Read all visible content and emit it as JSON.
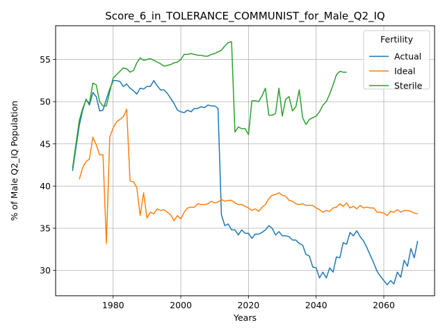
{
  "chart_data": {
    "type": "line",
    "title": "Score_6_in_TOLERANCE_COMMUNIST_for_Male_Q2_IQ",
    "xlabel": "Years",
    "ylabel": "% of Male Q2_IQ Population",
    "xlim": [
      1963,
      2075
    ],
    "ylim": [
      27,
      59
    ],
    "xticks": [
      1980,
      2000,
      2020,
      2040,
      2060
    ],
    "yticks": [
      30,
      35,
      40,
      45,
      50,
      55
    ],
    "grid": true,
    "legend": {
      "title": "Fertility",
      "placement": "top-right"
    },
    "series": [
      {
        "name": "Actual",
        "color": "#1f77b4",
        "x": [
          1968,
          1970,
          1971,
          1972,
          1973,
          1974,
          1975,
          1976,
          1977,
          1978,
          1979,
          1980,
          1981,
          1982,
          1983,
          1984,
          1985,
          1986,
          1987,
          1988,
          1989,
          1990,
          1991,
          1992,
          1993,
          1994,
          1995,
          1996,
          1997,
          1998,
          1999,
          2000,
          2001,
          2002,
          2003,
          2004,
          2005,
          2006,
          2007,
          2008,
          2009,
          2010,
          2011,
          2012,
          2013,
          2014,
          2015,
          2016,
          2017,
          2018,
          2019,
          2020,
          2021,
          2022,
          2023,
          2024,
          2025,
          2026,
          2027,
          2028,
          2029,
          2030,
          2031,
          2032,
          2033,
          2034,
          2035,
          2036,
          2037,
          2038,
          2039,
          2040,
          2041,
          2042,
          2043,
          2044,
          2045,
          2046,
          2047,
          2048,
          2049,
          2050,
          2051,
          2052,
          2053,
          2054,
          2055,
          2056,
          2057,
          2058,
          2059,
          2060,
          2061,
          2062,
          2063,
          2064,
          2065,
          2066,
          2067,
          2068,
          2069,
          2070
        ],
        "y": [
          41.8,
          47.2,
          49.0,
          50.3,
          49.6,
          51.1,
          50.6,
          48.9,
          49.0,
          50.3,
          51.5,
          52.5,
          52.5,
          52.4,
          51.8,
          52.1,
          51.6,
          51.3,
          50.9,
          51.6,
          51.5,
          51.8,
          51.8,
          52.5,
          51.9,
          51.4,
          51.4,
          51.0,
          50.4,
          49.8,
          49.0,
          48.8,
          48.7,
          49.0,
          48.8,
          49.2,
          49.2,
          49.4,
          49.3,
          49.6,
          49.5,
          49.5,
          49.2,
          36.6,
          35.3,
          35.5,
          34.8,
          34.8,
          34.2,
          34.8,
          34.4,
          34.4,
          33.8,
          34.3,
          34.3,
          34.5,
          34.8,
          35.3,
          35.0,
          34.2,
          34.6,
          34.1,
          34.1,
          34.0,
          33.6,
          33.6,
          33.2,
          33.0,
          31.9,
          31.7,
          30.4,
          30.3,
          29.1,
          29.8,
          29.1,
          30.3,
          29.8,
          31.6,
          31.5,
          33.3,
          33.1,
          34.5,
          34.1,
          34.7,
          34.0,
          33.5,
          32.7,
          31.8,
          30.9,
          29.9,
          29.3,
          28.8,
          28.3,
          28.8,
          28.4,
          29.8,
          29.2,
          31.2,
          30.5,
          32.6,
          31.5,
          33.5
        ]
      },
      {
        "name": "Ideal",
        "color": "#ff7f0e",
        "x": [
          1970,
          1971,
          1972,
          1973,
          1974,
          1975,
          1976,
          1977,
          1978,
          1979,
          1980,
          1981,
          1982,
          1983,
          1984,
          1985,
          1986,
          1987,
          1988,
          1989,
          1990,
          1991,
          1992,
          1993,
          1994,
          1995,
          1996,
          1997,
          1998,
          1999,
          2000,
          2001,
          2002,
          2003,
          2004,
          2005,
          2006,
          2007,
          2008,
          2009,
          2010,
          2011,
          2012,
          2013,
          2014,
          2015,
          2016,
          2017,
          2018,
          2019,
          2020,
          2021,
          2022,
          2023,
          2024,
          2025,
          2026,
          2027,
          2028,
          2029,
          2030,
          2031,
          2032,
          2033,
          2034,
          2035,
          2036,
          2037,
          2038,
          2039,
          2040,
          2041,
          2042,
          2043,
          2044,
          2045,
          2046,
          2047,
          2048,
          2049,
          2050,
          2051,
          2052,
          2053,
          2054,
          2055,
          2056,
          2057,
          2058,
          2059,
          2060,
          2061,
          2062,
          2063,
          2064,
          2065,
          2066,
          2067,
          2068,
          2069,
          2070
        ],
        "y": [
          40.8,
          42.2,
          42.9,
          43.2,
          45.8,
          44.9,
          43.7,
          43.7,
          33.2,
          45.8,
          46.9,
          47.6,
          47.9,
          48.2,
          49.1,
          40.6,
          40.5,
          39.8,
          36.5,
          39.2,
          36.2,
          36.9,
          36.7,
          37.3,
          37.1,
          37.2,
          36.9,
          36.6,
          35.9,
          36.5,
          36.1,
          36.9,
          37.4,
          37.5,
          37.5,
          37.9,
          37.8,
          37.8,
          37.9,
          38.2,
          38.0,
          38.1,
          38.4,
          38.2,
          38.3,
          38.3,
          38.0,
          37.8,
          37.8,
          37.6,
          37.4,
          37.1,
          37.3,
          37.0,
          37.5,
          37.8,
          38.5,
          38.9,
          39.0,
          39.2,
          38.9,
          38.8,
          38.3,
          38.2,
          37.9,
          37.8,
          37.9,
          37.7,
          37.7,
          37.7,
          37.4,
          37.2,
          36.9,
          37.1,
          37.0,
          37.4,
          37.5,
          37.9,
          37.6,
          38.0,
          37.4,
          37.6,
          37.3,
          37.7,
          37.4,
          37.5,
          37.4,
          37.4,
          36.9,
          36.9,
          36.8,
          36.5,
          37.0,
          36.9,
          37.2,
          36.9,
          37.1,
          37.1,
          37.0,
          36.8,
          36.7
        ]
      },
      {
        "name": "Sterile",
        "color": "#2ca02c",
        "x": [
          1968,
          1970,
          1971,
          1972,
          1973,
          1974,
          1975,
          1976,
          1977,
          1978,
          1979,
          1980,
          1981,
          1982,
          1983,
          1984,
          1985,
          1986,
          1987,
          1988,
          1989,
          1990,
          1991,
          1992,
          1993,
          1994,
          1995,
          1996,
          1997,
          1998,
          1999,
          2000,
          2001,
          2002,
          2003,
          2004,
          2005,
          2006,
          2007,
          2008,
          2009,
          2010,
          2011,
          2012,
          2013,
          2014,
          2015,
          2016,
          2017,
          2018,
          2019,
          2020,
          2021,
          2022,
          2023,
          2024,
          2025,
          2026,
          2027,
          2028,
          2029,
          2030,
          2031,
          2032,
          2033,
          2034,
          2035,
          2036,
          2037,
          2038,
          2039,
          2040,
          2041,
          2042,
          2043,
          2044,
          2045,
          2046,
          2047,
          2048,
          2049
        ],
        "y": [
          42.1,
          47.8,
          49.2,
          50.2,
          49.8,
          52.2,
          52.0,
          50.0,
          49.5,
          49.5,
          51.2,
          52.8,
          53.2,
          53.6,
          54.0,
          53.9,
          53.5,
          53.7,
          54.6,
          55.2,
          54.9,
          55.0,
          55.1,
          54.9,
          54.7,
          54.5,
          54.2,
          54.3,
          54.4,
          54.6,
          54.7,
          55.0,
          55.6,
          55.6,
          55.7,
          55.6,
          55.5,
          55.5,
          55.4,
          55.4,
          55.6,
          55.7,
          55.9,
          56.1,
          56.6,
          57.0,
          57.1,
          46.4,
          47.0,
          46.8,
          46.8,
          46.1,
          50.1,
          50.1,
          50.0,
          50.7,
          51.6,
          48.4,
          48.4,
          48.6,
          51.6,
          48.3,
          50.3,
          50.6,
          48.9,
          49.4,
          51.4,
          48.1,
          47.3,
          47.9,
          48.1,
          48.3,
          48.8,
          49.6,
          50.0,
          50.9,
          52.0,
          53.2,
          53.6,
          53.5,
          53.5
        ]
      }
    ]
  }
}
